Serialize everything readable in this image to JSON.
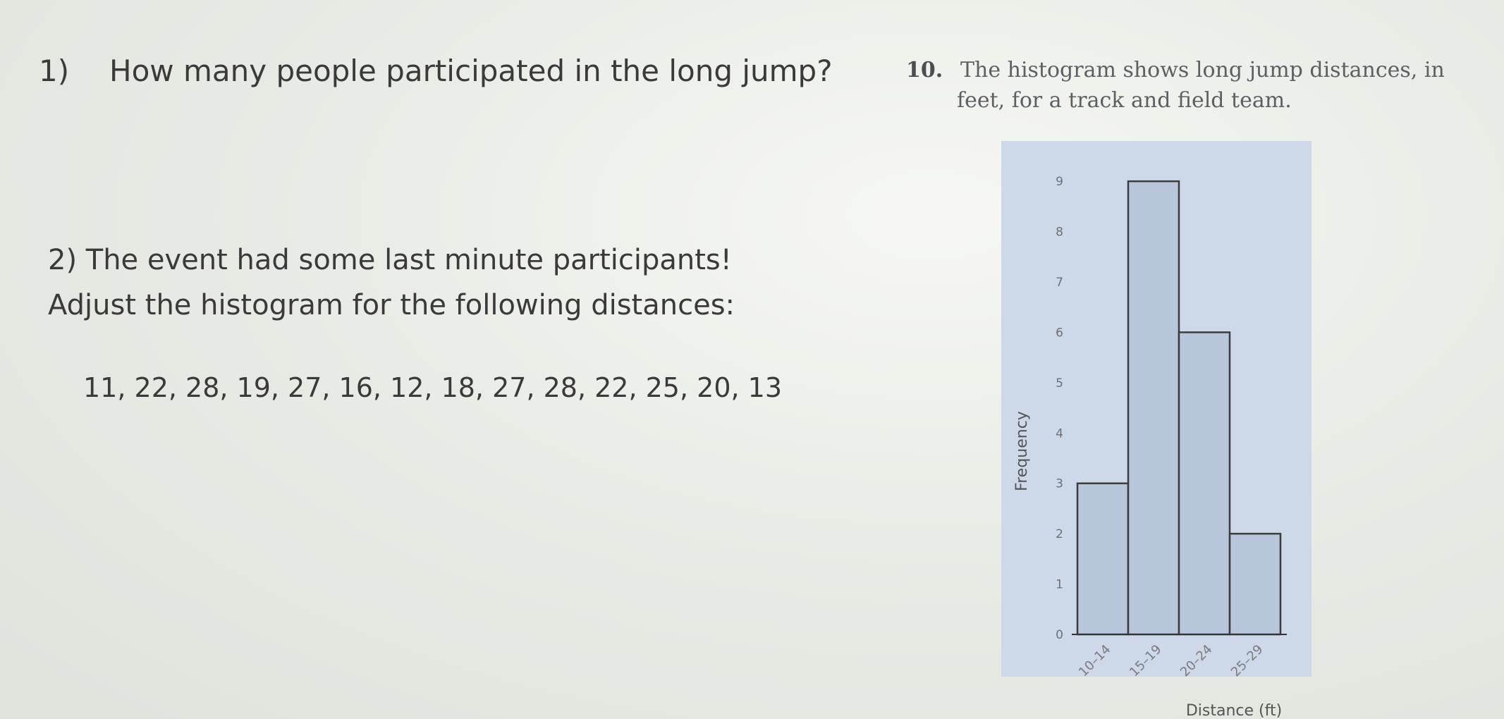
{
  "question1": {
    "number": "1)",
    "text": "How many people participated in the long jump?"
  },
  "question2": {
    "line1": "2) The event had some last minute participants!",
    "line2": "Adjust the histogram for the following distances:",
    "values_text": "11, 22, 28, 19, 27, 16, 12, 18, 27, 28, 22, 25, 20, 13"
  },
  "problem10": {
    "number": "10.",
    "line1": "The histogram shows long jump distances, in",
    "line2": "feet, for a track and field team."
  },
  "chart_data": {
    "type": "bar",
    "title": "",
    "xlabel": "Distance (ft)",
    "ylabel": "Frequency",
    "categories": [
      "10–14",
      "15–19",
      "20–24",
      "25–29"
    ],
    "values": [
      3,
      9,
      6,
      2
    ],
    "y_ticks": [
      "0",
      "1",
      "2",
      "3",
      "4",
      "5",
      "6",
      "7",
      "8",
      "9"
    ],
    "ylim": [
      0,
      9.8
    ],
    "grid": false,
    "colors": {
      "plot_background": "#cdd8e8",
      "bar_fill": "#b8c6dc",
      "bar_stroke": "#3c3c3c"
    }
  }
}
